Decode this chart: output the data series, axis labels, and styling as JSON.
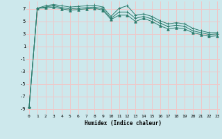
{
  "title": "",
  "xlabel": "Humidex (Indice chaleur)",
  "ylabel": "",
  "background_color": "#cde8ec",
  "grid_color": "#f0c8c8",
  "line_color": "#2d7d6e",
  "x_ticks": [
    0,
    1,
    2,
    3,
    4,
    5,
    6,
    7,
    8,
    9,
    10,
    11,
    12,
    13,
    14,
    15,
    16,
    17,
    18,
    19,
    20,
    21,
    22,
    23
  ],
  "y_ticks": [
    -9,
    -7,
    -5,
    -3,
    -1,
    1,
    3,
    5,
    7
  ],
  "xlim": [
    -0.3,
    23.3
  ],
  "ylim": [
    -9.8,
    8.2
  ],
  "line1_x": [
    0,
    1,
    2,
    3,
    4,
    5,
    6,
    7,
    8,
    9,
    10,
    11,
    12,
    13,
    14,
    15,
    16,
    17,
    18,
    19,
    20,
    21,
    22,
    23
  ],
  "line1_y": [
    -8.7,
    7.1,
    7.5,
    7.7,
    7.5,
    7.3,
    7.4,
    7.5,
    7.6,
    7.3,
    5.8,
    7.1,
    7.5,
    6.0,
    6.2,
    5.8,
    5.1,
    4.6,
    4.8,
    4.6,
    3.9,
    3.5,
    3.2,
    3.2
  ],
  "line2_x": [
    0,
    1,
    2,
    3,
    4,
    5,
    6,
    7,
    8,
    9,
    10,
    11,
    12,
    13,
    14,
    15,
    16,
    17,
    18,
    19,
    20,
    21,
    22,
    23
  ],
  "line2_y": [
    -8.7,
    7.1,
    7.3,
    7.5,
    7.2,
    7.0,
    7.1,
    7.2,
    7.3,
    7.0,
    5.5,
    6.5,
    6.5,
    5.5,
    5.8,
    5.4,
    4.7,
    4.2,
    4.4,
    4.2,
    3.5,
    3.2,
    2.9,
    3.0
  ],
  "line3_x": [
    0,
    1,
    2,
    3,
    4,
    5,
    6,
    7,
    8,
    9,
    10,
    11,
    12,
    13,
    14,
    15,
    16,
    17,
    18,
    19,
    20,
    21,
    22,
    23
  ],
  "line3_y": [
    -8.7,
    7.1,
    7.15,
    7.3,
    7.0,
    6.8,
    6.9,
    7.0,
    7.1,
    6.8,
    5.3,
    6.0,
    6.0,
    5.0,
    5.5,
    5.0,
    4.3,
    3.8,
    4.0,
    3.8,
    3.2,
    2.9,
    2.6,
    2.7
  ]
}
